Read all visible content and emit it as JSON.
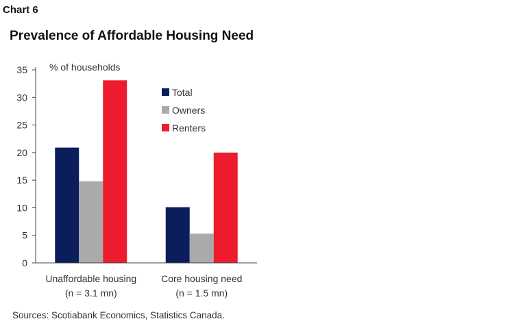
{
  "header": {
    "chart_number": "Chart 6",
    "title": "Prevalence of Affordable Housing Need"
  },
  "chart_data": {
    "type": "bar",
    "title": "Prevalence of Affordable Housing Need",
    "ylabel": "% of households",
    "xlabel": "",
    "ylim": [
      0,
      35
    ],
    "yticks": [
      0,
      5,
      10,
      15,
      20,
      25,
      30,
      35
    ],
    "categories": [
      {
        "line1": "Unaffordable housing",
        "line2": "(n = 3.1 mn)"
      },
      {
        "line1": "Core housing need",
        "line2": "(n = 1.5 mn)"
      }
    ],
    "series": [
      {
        "name": "Total",
        "color": "#0b1e5b",
        "values": [
          20.9,
          10.1
        ]
      },
      {
        "name": "Owners",
        "color": "#aaaaaa",
        "values": [
          14.8,
          5.3
        ]
      },
      {
        "name": "Renters",
        "color": "#ec1c2e",
        "values": [
          33.1,
          20.0
        ]
      }
    ],
    "legend_position": "top-center"
  },
  "footer": {
    "source": "Sources: Scotiabank Economics, Statistics Canada."
  }
}
